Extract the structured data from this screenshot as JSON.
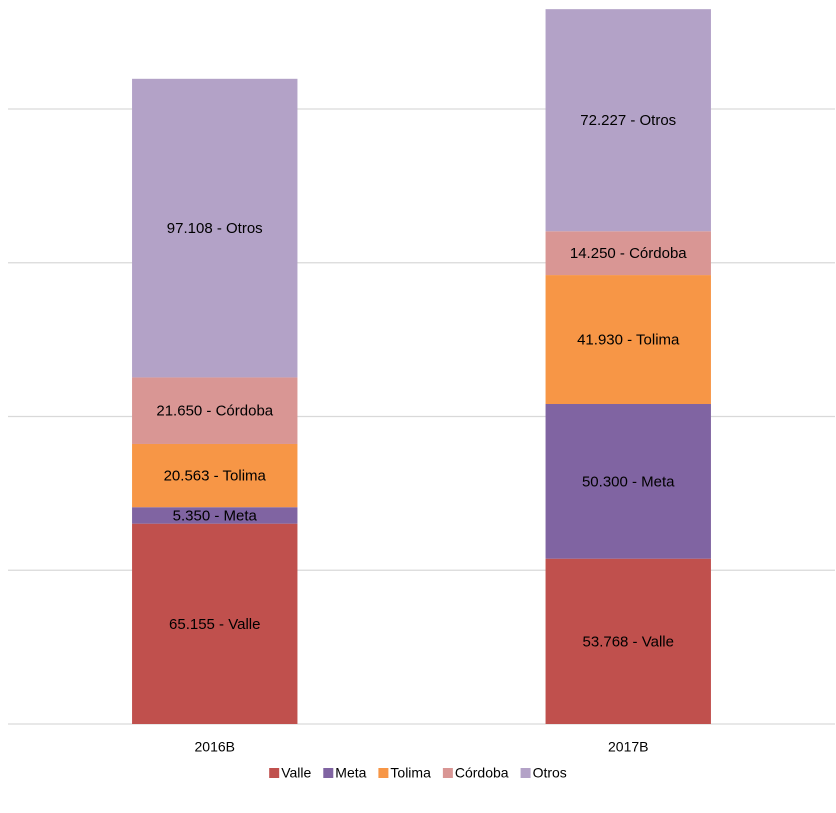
{
  "chart_data": {
    "type": "stacked_bar",
    "categories": [
      "2016B",
      "2017B"
    ],
    "series": [
      {
        "name": "Valle",
        "color": "#c0504d",
        "values": [
          65155,
          53768
        ],
        "value_labels": [
          "65.155 - Valle",
          "53.768 - Valle"
        ]
      },
      {
        "name": "Meta",
        "color": "#8064a2",
        "values": [
          5350,
          50300
        ],
        "value_labels": [
          "5.350 - Meta",
          "50.300 - Meta"
        ]
      },
      {
        "name": "Tolima",
        "color": "#f79646",
        "values": [
          20563,
          41930
        ],
        "value_labels": [
          "20.563 - Tolima",
          "41.930 - Tolima"
        ]
      },
      {
        "name": "Córdoba",
        "color": "#d99694",
        "values": [
          21650,
          14250
        ],
        "value_labels": [
          "21.650 - Córdoba",
          "14.250 - Córdoba"
        ]
      },
      {
        "name": "Otros",
        "color": "#b3a2c7",
        "values": [
          97108,
          72227
        ],
        "value_labels": [
          "97.108 - Otros",
          "72.227 - Otros"
        ]
      }
    ],
    "ylim": [
      0,
      235000
    ],
    "yticks": [
      0,
      50000,
      100000,
      150000,
      200000
    ],
    "grid": true,
    "legend": "bottom"
  }
}
